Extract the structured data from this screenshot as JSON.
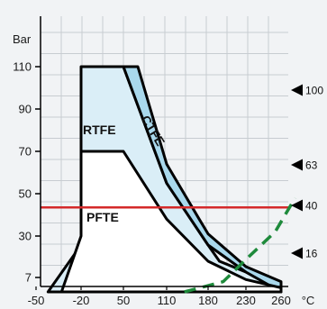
{
  "chart_data": {
    "type": "area",
    "ylabel": "Bar",
    "xunit": "°C",
    "x_ticks": [
      -50,
      -20,
      50,
      110,
      180,
      230,
      260
    ],
    "y_ticks": [
      7,
      30,
      50,
      70,
      90,
      110
    ],
    "xlim": [
      -50,
      260
    ],
    "ylim": [
      0,
      130
    ],
    "grid": true,
    "regions": [
      {
        "name": "RTFE",
        "fill": "#daeef7",
        "outline": [
          [
            -42,
            0
          ],
          [
            -20,
            25
          ],
          [
            -20,
            110
          ],
          [
            50,
            110
          ],
          [
            110,
            55
          ],
          [
            165,
            32
          ],
          [
            180,
            25
          ],
          [
            195,
            16
          ],
          [
            230,
            10
          ],
          [
            260,
            0
          ]
        ]
      },
      {
        "name": "CTFE",
        "fill": "#a9d8ec",
        "outline": [
          [
            70,
            110
          ],
          [
            110,
            64
          ],
          [
            165,
            38
          ],
          [
            180,
            31
          ],
          [
            230,
            13
          ],
          [
            260,
            5
          ],
          [
            260,
            0
          ],
          [
            230,
            10
          ],
          [
            180,
            25
          ],
          [
            110,
            55
          ],
          [
            50,
            110
          ]
        ]
      },
      {
        "name": "PFTE",
        "fill": "#ffffff",
        "outline": [
          [
            -33,
            0
          ],
          [
            -20,
            30
          ],
          [
            -20,
            70
          ],
          [
            50,
            70
          ],
          [
            110,
            38
          ],
          [
            180,
            16
          ],
          [
            230,
            6
          ],
          [
            260,
            2
          ],
          [
            260,
            0
          ]
        ]
      }
    ],
    "reference_line": {
      "value": 43.5,
      "color": "#d42a2a"
    },
    "dashed_curve": {
      "color": "#1e8a3b",
      "points": [
        [
          140,
          0
        ],
        [
          200,
          5
        ],
        [
          230,
          17
        ],
        [
          255,
          32
        ],
        [
          272,
          48
        ]
      ]
    },
    "right_markers": [
      {
        "label": "100",
        "value": 100
      },
      {
        "label": "63",
        "value": 63
      },
      {
        "label": "40",
        "value": 40
      },
      {
        "label": "16",
        "value": 16
      }
    ]
  }
}
